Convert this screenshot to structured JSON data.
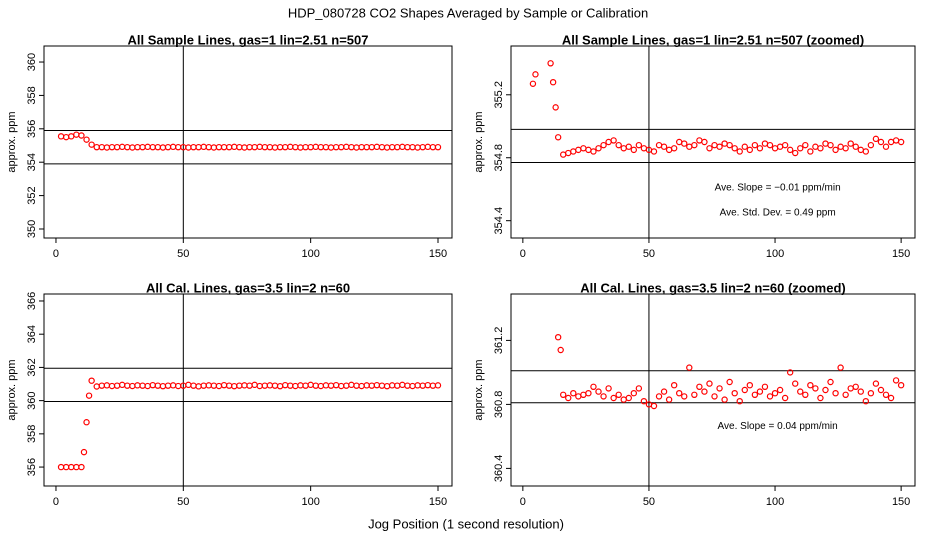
{
  "title": "HDP_080728  CO2 Shapes Averaged by Sample or Calibration",
  "xlabel": "Jog Position (1 second resolution)",
  "chart_data": [
    {
      "type": "scatter",
      "title": "All Sample Lines, gas=1 lin=2.51 n=507",
      "ylabel": "approx. ppm",
      "color": "#ff0000",
      "xlim": [
        -4.7,
        155.5
      ],
      "ylim": [
        349.46,
        360.96
      ],
      "xticks": [
        0,
        50,
        100,
        150
      ],
      "yticks": [
        350,
        352,
        354,
        356,
        358,
        360
      ],
      "hlines": [
        355.9,
        353.9
      ],
      "vlines": [
        50
      ],
      "x": [
        2,
        4,
        6,
        8,
        10,
        12,
        14,
        16,
        18,
        20,
        22,
        24,
        26,
        28,
        30,
        32,
        34,
        36,
        38,
        40,
        42,
        44,
        46,
        48,
        50,
        52,
        54,
        56,
        58,
        60,
        62,
        64,
        66,
        68,
        70,
        72,
        74,
        76,
        78,
        80,
        82,
        84,
        86,
        88,
        90,
        92,
        94,
        96,
        98,
        100,
        102,
        104,
        106,
        108,
        110,
        112,
        114,
        116,
        118,
        120,
        122,
        124,
        126,
        128,
        130,
        132,
        134,
        136,
        138,
        140,
        142,
        144,
        146,
        148,
        150
      ],
      "values": [
        355.55,
        355.5,
        355.55,
        355.65,
        355.6,
        355.35,
        355.05,
        354.9,
        354.9,
        354.88,
        354.9,
        354.9,
        354.92,
        354.9,
        354.88,
        354.9,
        354.9,
        354.92,
        354.9,
        354.9,
        354.88,
        354.9,
        354.92,
        354.9,
        354.9,
        354.88,
        354.9,
        354.9,
        354.92,
        354.9,
        354.88,
        354.9,
        354.9,
        354.9,
        354.92,
        354.9,
        354.88,
        354.9,
        354.9,
        354.92,
        354.9,
        354.9,
        354.88,
        354.9,
        354.9,
        354.92,
        354.9,
        354.88,
        354.9,
        354.9,
        354.92,
        354.9,
        354.9,
        354.88,
        354.9,
        354.9,
        354.92,
        354.9,
        354.88,
        354.9,
        354.9,
        354.9,
        354.92,
        354.9,
        354.88,
        354.9,
        354.9,
        354.92,
        354.9,
        354.9,
        354.88,
        354.9,
        354.92,
        354.9,
        354.9
      ]
    },
    {
      "type": "scatter",
      "title": "All Sample Lines, gas=1 lin=2.51 n=507 (zoomed)",
      "ylabel": "approx. ppm",
      "color": "#ff0000",
      "xlim": [
        -4.7,
        155.5
      ],
      "ylim": [
        354.29,
        355.51
      ],
      "xticks": [
        0,
        50,
        100,
        150
      ],
      "yticks": [
        354.4,
        354.8,
        355.2
      ],
      "hlines": [
        354.98,
        354.77
      ],
      "vlines": [
        50
      ],
      "annotations": [
        "Ave. Slope =  −0.01  ppm/min",
        "Ave. Std. Dev. =  0.49  ppm"
      ],
      "x": [
        4,
        5,
        11,
        12,
        13,
        14,
        16,
        18,
        20,
        22,
        24,
        26,
        28,
        30,
        32,
        34,
        36,
        38,
        40,
        42,
        44,
        46,
        48,
        50,
        52,
        54,
        56,
        58,
        60,
        62,
        64,
        66,
        68,
        70,
        72,
        74,
        76,
        78,
        80,
        82,
        84,
        86,
        88,
        90,
        92,
        94,
        96,
        98,
        100,
        102,
        104,
        106,
        108,
        110,
        112,
        114,
        116,
        118,
        120,
        122,
        124,
        126,
        128,
        130,
        132,
        134,
        136,
        138,
        140,
        142,
        144,
        146,
        148,
        150
      ],
      "values": [
        355.27,
        355.33,
        355.4,
        355.28,
        355.12,
        354.93,
        354.82,
        354.83,
        354.84,
        354.85,
        354.86,
        354.85,
        354.84,
        354.86,
        354.88,
        354.9,
        354.91,
        354.88,
        354.86,
        354.87,
        354.85,
        354.88,
        354.86,
        354.85,
        354.84,
        354.88,
        354.87,
        354.85,
        354.86,
        354.9,
        354.89,
        354.87,
        354.88,
        354.91,
        354.9,
        354.86,
        354.88,
        354.87,
        354.89,
        354.88,
        354.86,
        354.84,
        354.87,
        354.85,
        354.88,
        354.86,
        354.89,
        354.88,
        354.86,
        354.87,
        354.88,
        354.85,
        354.83,
        354.86,
        354.88,
        354.84,
        354.87,
        354.86,
        354.89,
        354.88,
        354.85,
        354.87,
        354.86,
        354.89,
        354.87,
        354.85,
        354.84,
        354.88,
        354.92,
        354.9,
        354.87,
        354.9,
        354.91,
        354.9
      ]
    },
    {
      "type": "scatter",
      "title": "All Cal. Lines, gas=3.5 lin=2 n=60",
      "ylabel": "approx. ppm",
      "color": "#ff0000",
      "xlim": [
        -4.7,
        155.5
      ],
      "ylim": [
        354.86,
        366.42
      ],
      "xticks": [
        0,
        50,
        100,
        150
      ],
      "yticks": [
        356,
        358,
        360,
        362,
        364,
        366
      ],
      "hlines": [
        361.95,
        359.95
      ],
      "vlines": [
        50
      ],
      "x": [
        2,
        4,
        6,
        8,
        10,
        11,
        12,
        13,
        14,
        16,
        18,
        20,
        22,
        24,
        26,
        28,
        30,
        32,
        34,
        36,
        38,
        40,
        42,
        44,
        46,
        48,
        50,
        52,
        54,
        56,
        58,
        60,
        62,
        64,
        66,
        68,
        70,
        72,
        74,
        76,
        78,
        80,
        82,
        84,
        86,
        88,
        90,
        92,
        94,
        96,
        98,
        100,
        102,
        104,
        106,
        108,
        110,
        112,
        114,
        116,
        118,
        120,
        122,
        124,
        126,
        128,
        130,
        132,
        134,
        136,
        138,
        140,
        142,
        144,
        146,
        148,
        150
      ],
      "values": [
        356,
        356,
        356,
        356,
        356,
        356.9,
        358.7,
        360.3,
        361.2,
        360.85,
        360.9,
        360.92,
        360.88,
        360.9,
        360.95,
        360.9,
        360.88,
        360.92,
        360.9,
        360.88,
        360.93,
        360.9,
        360.87,
        360.9,
        360.92,
        360.88,
        360.9,
        360.95,
        360.9,
        360.86,
        360.9,
        360.92,
        360.9,
        360.88,
        360.93,
        360.9,
        360.87,
        360.9,
        360.92,
        360.9,
        360.95,
        360.88,
        360.9,
        360.92,
        360.9,
        360.87,
        360.93,
        360.9,
        360.88,
        360.92,
        360.9,
        360.95,
        360.9,
        360.88,
        360.92,
        360.9,
        360.93,
        360.88,
        360.9,
        360.95,
        360.9,
        360.88,
        360.92,
        360.9,
        360.93,
        360.9,
        360.87,
        360.92,
        360.9,
        360.95,
        360.9,
        360.88,
        360.92,
        360.9,
        360.93,
        360.9,
        360.92
      ]
    },
    {
      "type": "scatter",
      "title": "All Cal. Lines, gas=3.5 lin=2 n=60 (zoomed)",
      "ylabel": "approx. ppm",
      "color": "#ff0000",
      "xlim": [
        -4.7,
        155.5
      ],
      "ylim": [
        360.29,
        361.49
      ],
      "xticks": [
        0,
        50,
        100,
        150
      ],
      "yticks": [
        360.4,
        360.8,
        361.2
      ],
      "hlines": [
        361.01,
        360.81
      ],
      "vlines": [
        50
      ],
      "annotations": [
        "Ave. Slope =  0.04  ppm/min"
      ],
      "x": [
        14,
        15,
        16,
        18,
        20,
        22,
        24,
        26,
        28,
        30,
        32,
        34,
        36,
        38,
        40,
        42,
        44,
        46,
        48,
        50,
        52,
        54,
        56,
        58,
        60,
        62,
        64,
        66,
        68,
        70,
        72,
        74,
        76,
        78,
        80,
        82,
        84,
        86,
        88,
        90,
        92,
        94,
        96,
        98,
        100,
        102,
        104,
        106,
        108,
        110,
        112,
        114,
        116,
        118,
        120,
        122,
        124,
        126,
        128,
        130,
        132,
        134,
        136,
        138,
        140,
        142,
        144,
        146,
        148,
        150
      ],
      "values": [
        361.22,
        361.14,
        360.86,
        360.84,
        360.87,
        360.85,
        360.86,
        360.87,
        360.91,
        360.88,
        360.85,
        360.9,
        360.84,
        360.86,
        360.83,
        360.84,
        360.87,
        360.9,
        360.82,
        360.8,
        360.79,
        360.85,
        360.88,
        360.83,
        360.92,
        360.87,
        360.85,
        361.03,
        360.86,
        360.91,
        360.88,
        360.93,
        360.85,
        360.9,
        360.83,
        360.94,
        360.87,
        360.82,
        360.89,
        360.92,
        360.86,
        360.88,
        360.91,
        360.85,
        360.87,
        360.89,
        360.84,
        361.0,
        360.93,
        360.88,
        360.86,
        360.92,
        360.9,
        360.84,
        360.89,
        360.94,
        360.87,
        361.03,
        360.86,
        360.9,
        360.91,
        360.88,
        360.82,
        360.87,
        360.93,
        360.89,
        360.86,
        360.84,
        360.95,
        360.92
      ]
    }
  ]
}
